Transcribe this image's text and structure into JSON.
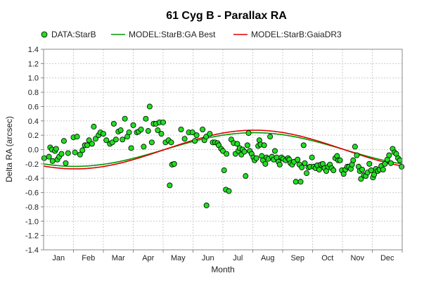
{
  "chart_data": {
    "type": "scatter",
    "title": "61 Cyg B - Parallax RA",
    "xlabel": "Month",
    "ylabel": "Delta RA (arcsec)",
    "ylim": [
      -1.4,
      1.4
    ],
    "yticks": [
      1.4,
      1.2,
      1.0,
      0.8,
      0.6,
      0.4,
      0.2,
      0.0,
      -0.2,
      -0.4,
      -0.6,
      -0.8,
      -1.0,
      -1.2,
      -1.4
    ],
    "ytick_labels": [
      "1.4",
      "1.2",
      "1.0",
      "0.8",
      "0.6",
      "0.4",
      "0.2",
      "0.0",
      "-0.2",
      "-0.4",
      "-0.6",
      "-0.8",
      "-1.0",
      "-1.2",
      "-1.4"
    ],
    "xlim": [
      0,
      12
    ],
    "months": [
      "Jan",
      "Feb",
      "Mar",
      "Apr",
      "May",
      "Jun",
      "Jul",
      "Aug",
      "Sep",
      "Oct",
      "Nov",
      "Dec"
    ],
    "grid": true,
    "legend_position": "top",
    "colors": {
      "data": "#22dd22",
      "data_edge": "#000000",
      "ga_best": "#009900",
      "gaiadr3": "#dd0000",
      "grid": "#cccccc"
    },
    "series": [
      {
        "name": "DATA:StarB",
        "kind": "scatter",
        "points": [
          [
            0.02,
            -0.12
          ],
          [
            0.18,
            -0.1
          ],
          [
            0.22,
            0.03
          ],
          [
            0.28,
            0.0
          ],
          [
            0.3,
            -0.16
          ],
          [
            0.38,
            -0.02
          ],
          [
            0.42,
            0.01
          ],
          [
            0.46,
            -0.14
          ],
          [
            0.52,
            -0.1
          ],
          [
            0.6,
            -0.06
          ],
          [
            0.68,
            0.12
          ],
          [
            0.74,
            -0.19
          ],
          [
            0.82,
            -0.05
          ],
          [
            1.0,
            0.17
          ],
          [
            1.05,
            -0.04
          ],
          [
            1.12,
            0.18
          ],
          [
            1.22,
            -0.07
          ],
          [
            1.3,
            -0.01
          ],
          [
            1.38,
            0.06
          ],
          [
            1.46,
            0.06
          ],
          [
            1.52,
            0.13
          ],
          [
            1.62,
            0.08
          ],
          [
            1.68,
            0.32
          ],
          [
            1.74,
            0.15
          ],
          [
            1.84,
            0.2
          ],
          [
            1.9,
            0.24
          ],
          [
            2.0,
            0.22
          ],
          [
            2.1,
            0.13
          ],
          [
            2.22,
            0.08
          ],
          [
            2.3,
            0.1
          ],
          [
            2.35,
            0.36
          ],
          [
            2.42,
            0.14
          ],
          [
            2.5,
            0.25
          ],
          [
            2.58,
            0.27
          ],
          [
            2.64,
            0.14
          ],
          [
            2.72,
            0.43
          ],
          [
            2.8,
            0.18
          ],
          [
            2.86,
            0.24
          ],
          [
            2.93,
            0.02
          ],
          [
            3.0,
            0.34
          ],
          [
            3.12,
            0.24
          ],
          [
            3.18,
            0.25
          ],
          [
            3.26,
            0.28
          ],
          [
            3.35,
            0.04
          ],
          [
            3.42,
            0.43
          ],
          [
            3.5,
            0.26
          ],
          [
            3.55,
            0.6
          ],
          [
            3.62,
            0.1
          ],
          [
            3.68,
            0.36
          ],
          [
            3.76,
            0.36
          ],
          [
            3.82,
            0.27
          ],
          [
            3.88,
            0.38
          ],
          [
            3.94,
            0.22
          ],
          [
            4.0,
            0.38
          ],
          [
            4.08,
            0.1
          ],
          [
            4.18,
            0.13
          ],
          [
            4.27,
            0.1
          ],
          [
            4.3,
            -0.21
          ],
          [
            4.37,
            -0.2
          ],
          [
            4.22,
            -0.5
          ],
          [
            4.6,
            0.28
          ],
          [
            4.72,
            0.15
          ],
          [
            4.86,
            0.24
          ],
          [
            4.98,
            0.24
          ],
          [
            5.06,
            0.12
          ],
          [
            5.12,
            0.2
          ],
          [
            5.32,
            0.28
          ],
          [
            5.38,
            0.13
          ],
          [
            5.44,
            0.18
          ],
          [
            5.45,
            -0.78
          ],
          [
            5.56,
            0.22
          ],
          [
            5.66,
            0.1
          ],
          [
            5.74,
            0.1
          ],
          [
            5.82,
            0.09
          ],
          [
            5.86,
            0.06
          ],
          [
            5.94,
            0.01
          ],
          [
            6.0,
            -0.02
          ],
          [
            6.04,
            -0.29
          ],
          [
            6.1,
            -0.56
          ],
          [
            6.2,
            -0.58
          ],
          [
            6.12,
            -0.06
          ],
          [
            6.28,
            0.14
          ],
          [
            6.36,
            0.09
          ],
          [
            6.42,
            -0.06
          ],
          [
            6.48,
            0.08
          ],
          [
            6.52,
            -0.02
          ],
          [
            6.56,
            0.02
          ],
          [
            6.62,
            -0.07
          ],
          [
            6.66,
            0.0
          ],
          [
            6.72,
            -0.03
          ],
          [
            6.76,
            -0.37
          ],
          [
            6.82,
            0.06
          ],
          [
            6.86,
            0.23
          ],
          [
            6.9,
            -0.02
          ],
          [
            6.96,
            -0.06
          ],
          [
            7.02,
            -0.11
          ],
          [
            7.06,
            -0.15
          ],
          [
            7.12,
            -0.12
          ],
          [
            7.18,
            0.05
          ],
          [
            7.22,
            0.13
          ],
          [
            7.26,
            0.07
          ],
          [
            7.3,
            -0.09
          ],
          [
            7.34,
            -0.15
          ],
          [
            7.38,
            0.06
          ],
          [
            7.42,
            -0.2
          ],
          [
            7.46,
            -0.11
          ],
          [
            7.52,
            -0.13
          ],
          [
            7.58,
            0.18
          ],
          [
            7.64,
            -0.1
          ],
          [
            7.7,
            -0.14
          ],
          [
            7.74,
            -0.02
          ],
          [
            7.8,
            -0.11
          ],
          [
            7.86,
            -0.17
          ],
          [
            7.9,
            -0.21
          ],
          [
            7.96,
            -0.11
          ],
          [
            8.02,
            -0.13
          ],
          [
            8.1,
            -0.15
          ],
          [
            8.18,
            -0.12
          ],
          [
            8.22,
            -0.14
          ],
          [
            8.26,
            -0.19
          ],
          [
            8.32,
            -0.21
          ],
          [
            8.38,
            -0.17
          ],
          [
            8.44,
            -0.45
          ],
          [
            8.5,
            -0.14
          ],
          [
            8.56,
            -0.21
          ],
          [
            8.6,
            -0.45
          ],
          [
            8.64,
            -0.25
          ],
          [
            8.7,
            0.06
          ],
          [
            8.74,
            -0.19
          ],
          [
            8.8,
            -0.33
          ],
          [
            8.86,
            -0.25
          ],
          [
            8.92,
            -0.24
          ],
          [
            8.98,
            -0.11
          ],
          [
            9.04,
            -0.24
          ],
          [
            9.1,
            -0.26
          ],
          [
            9.16,
            -0.22
          ],
          [
            9.22,
            -0.28
          ],
          [
            9.28,
            -0.21
          ],
          [
            9.34,
            -0.2
          ],
          [
            9.4,
            -0.26
          ],
          [
            9.46,
            -0.3
          ],
          [
            9.52,
            -0.24
          ],
          [
            9.58,
            -0.21
          ],
          [
            9.64,
            -0.26
          ],
          [
            9.7,
            -0.29
          ],
          [
            9.76,
            -0.12
          ],
          [
            9.82,
            -0.09
          ],
          [
            9.86,
            -0.15
          ],
          [
            9.92,
            -0.15
          ],
          [
            9.98,
            -0.29
          ],
          [
            10.04,
            -0.34
          ],
          [
            10.1,
            -0.28
          ],
          [
            10.16,
            -0.24
          ],
          [
            10.22,
            -0.24
          ],
          [
            10.28,
            -0.27
          ],
          [
            10.32,
            -0.21
          ],
          [
            10.36,
            -0.15
          ],
          [
            10.42,
            0.04
          ],
          [
            10.48,
            -0.08
          ],
          [
            10.54,
            -0.24
          ],
          [
            10.58,
            -0.3
          ],
          [
            10.62,
            -0.41
          ],
          [
            10.66,
            -0.28
          ],
          [
            10.72,
            -0.36
          ],
          [
            10.78,
            -0.37
          ],
          [
            10.84,
            -0.32
          ],
          [
            10.9,
            -0.2
          ],
          [
            10.96,
            -0.29
          ],
          [
            11.02,
            -0.39
          ],
          [
            11.06,
            -0.35
          ],
          [
            11.12,
            -0.27
          ],
          [
            11.18,
            -0.3
          ],
          [
            11.24,
            -0.28
          ],
          [
            11.3,
            -0.23
          ],
          [
            11.36,
            -0.28
          ],
          [
            11.42,
            -0.2
          ],
          [
            11.5,
            -0.14
          ],
          [
            11.56,
            -0.08
          ],
          [
            11.62,
            -0.19
          ],
          [
            11.68,
            0.01
          ],
          [
            11.74,
            -0.04
          ],
          [
            11.8,
            -0.06
          ],
          [
            11.86,
            -0.12
          ],
          [
            11.92,
            -0.15
          ],
          [
            11.98,
            -0.24
          ]
        ]
      },
      {
        "name": "MODEL:StarB:GA Best",
        "kind": "line",
        "amplitude": 0.235,
        "phase_months": 1.05
      },
      {
        "name": "MODEL:StarB:GaiaDR3",
        "kind": "line",
        "amplitude": 0.27,
        "phase_months": 1.05
      }
    ]
  }
}
